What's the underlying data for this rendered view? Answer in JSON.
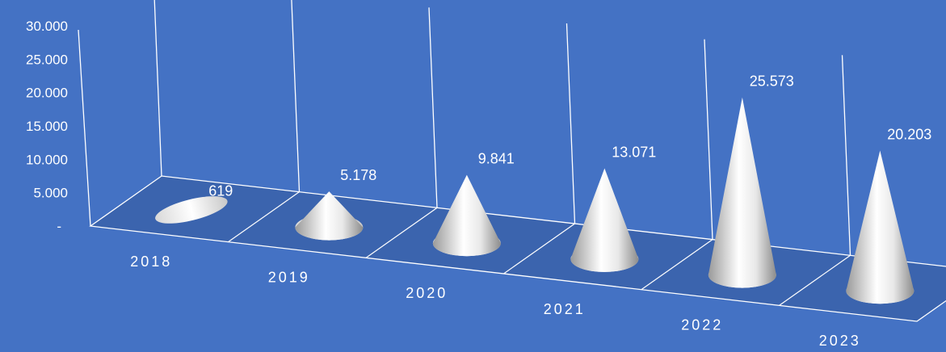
{
  "chart_data": {
    "type": "bar",
    "bar_shape": "cone",
    "projection": "3d",
    "categories": [
      "2018",
      "2019",
      "2020",
      "2021",
      "2022",
      "2023"
    ],
    "values": [
      619,
      5178,
      9841,
      13071,
      25573,
      20203
    ],
    "data_labels": [
      "619",
      "5.178",
      "9.841",
      "13.071",
      "25.573",
      "20.203"
    ],
    "yticks": [
      {
        "value": 0,
        "label": "-"
      },
      {
        "value": 5000,
        "label": "5.000"
      },
      {
        "value": 10000,
        "label": "10.000"
      },
      {
        "value": 15000,
        "label": "15.000"
      },
      {
        "value": 20000,
        "label": "20.000"
      },
      {
        "value": 25000,
        "label": "25.000"
      },
      {
        "value": 30000,
        "label": "30.000"
      }
    ],
    "ylim": [
      0,
      30000
    ],
    "title": "",
    "xlabel": "",
    "ylabel": "",
    "grid": "vertical category lines",
    "colors": {
      "background": "#4472C4",
      "floor": "#3B64AE",
      "lines": "#FFFFFF",
      "cone_light": "#FFFFFF",
      "cone_dark": "#8C8C8C",
      "text": "#FFFFFF"
    }
  }
}
